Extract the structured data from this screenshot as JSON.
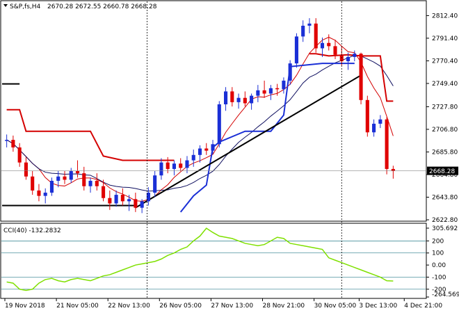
{
  "header": {
    "symbol": "S&P,fs,H4",
    "ohlc": "2670.28 2672.55 2660.78 2668.28"
  },
  "colors": {
    "up": "#1a2fd6",
    "down": "#e00000",
    "grid": "#000000",
    "cci": "#7fe000",
    "trend": "#000000"
  },
  "chart_data": [
    {
      "type": "candlestick",
      "title": "S&P,fs,H4",
      "ylim": [
        2622.8,
        2823.0
      ],
      "yticks": [
        "2812.40",
        "2791.40",
        "2770.40",
        "2749.40",
        "2727.80",
        "2706.80",
        "2685.80",
        "2664.80",
        "2643.80",
        "2622.80"
      ],
      "current_price": "2668.28",
      "x_labels": [
        "19 Nov 2018",
        "21 Nov 05:00",
        "22 Nov 13:00",
        "26 Nov 05:00",
        "27 Nov 13:00",
        "28 Nov 21:00",
        "30 Nov 05:00",
        "3 Dec 13:00",
        "4 Dec 21:00"
      ],
      "candles": [
        [
          2696,
          2702,
          2690,
          2697
        ],
        [
          2697,
          2701,
          2686,
          2690
        ],
        [
          2690,
          2694,
          2672,
          2676
        ],
        [
          2676,
          2681,
          2660,
          2663
        ],
        [
          2663,
          2668,
          2646,
          2650
        ],
        [
          2650,
          2656,
          2640,
          2645
        ],
        [
          2645,
          2652,
          2638,
          2648
        ],
        [
          2648,
          2662,
          2645,
          2659
        ],
        [
          2659,
          2668,
          2653,
          2663
        ],
        [
          2663,
          2668,
          2656,
          2660
        ],
        [
          2660,
          2671,
          2657,
          2668
        ],
        [
          2668,
          2678,
          2662,
          2666
        ],
        [
          2666,
          2672,
          2650,
          2654
        ],
        [
          2654,
          2662,
          2648,
          2659
        ],
        [
          2659,
          2666,
          2650,
          2654
        ],
        [
          2654,
          2660,
          2640,
          2643
        ],
        [
          2643,
          2650,
          2632,
          2638
        ],
        [
          2638,
          2650,
          2635,
          2646
        ],
        [
          2646,
          2652,
          2636,
          2640
        ],
        [
          2640,
          2646,
          2631,
          2642
        ],
        [
          2642,
          2648,
          2630,
          2634
        ],
        [
          2634,
          2642,
          2629,
          2640
        ],
        [
          2640,
          2653,
          2636,
          2648
        ],
        [
          2648,
          2668,
          2644,
          2664
        ],
        [
          2664,
          2680,
          2660,
          2676
        ],
        [
          2676,
          2681,
          2666,
          2670
        ],
        [
          2670,
          2678,
          2664,
          2675
        ],
        [
          2675,
          2680,
          2668,
          2671
        ],
        [
          2671,
          2682,
          2666,
          2678
        ],
        [
          2678,
          2688,
          2672,
          2683
        ],
        [
          2683,
          2692,
          2676,
          2689
        ],
        [
          2689,
          2694,
          2683,
          2687
        ],
        [
          2687,
          2697,
          2684,
          2693
        ],
        [
          2693,
          2733,
          2690,
          2730
        ],
        [
          2730,
          2746,
          2724,
          2742
        ],
        [
          2742,
          2746,
          2728,
          2732
        ],
        [
          2732,
          2740,
          2726,
          2736
        ],
        [
          2736,
          2742,
          2728,
          2731
        ],
        [
          2731,
          2740,
          2725,
          2738
        ],
        [
          2738,
          2748,
          2732,
          2743
        ],
        [
          2743,
          2752,
          2736,
          2740
        ],
        [
          2740,
          2748,
          2734,
          2745
        ],
        [
          2745,
          2749,
          2738,
          2744
        ],
        [
          2744,
          2755,
          2740,
          2752
        ],
        [
          2752,
          2771,
          2748,
          2768
        ],
        [
          2768,
          2796,
          2764,
          2793
        ],
        [
          2793,
          2808,
          2788,
          2803
        ],
        [
          2803,
          2810,
          2796,
          2805
        ],
        [
          2805,
          2810,
          2778,
          2782
        ],
        [
          2782,
          2792,
          2774,
          2787
        ],
        [
          2787,
          2795,
          2780,
          2784
        ],
        [
          2784,
          2790,
          2772,
          2776
        ],
        [
          2776,
          2784,
          2766,
          2770
        ],
        [
          2770,
          2778,
          2762,
          2774
        ],
        [
          2774,
          2780,
          2770,
          2777
        ],
        [
          2777,
          2778,
          2730,
          2734
        ],
        [
          2734,
          2738,
          2700,
          2704
        ],
        [
          2704,
          2716,
          2700,
          2712
        ],
        [
          2712,
          2720,
          2708,
          2716
        ],
        [
          2716,
          2718,
          2665,
          2670
        ],
        [
          2670,
          2673,
          2661,
          2668
        ]
      ],
      "annotations": [
        "horizontal resistance line",
        "ascending trendline",
        "moving averages (red, navy)",
        "support/resistance steps (red, blue)"
      ]
    },
    {
      "type": "line",
      "title": "CCI(40) -132.2832",
      "ylim": [
        -264.57,
        305.69
      ],
      "yticks": [
        "305.692",
        "200",
        "100",
        "0.00",
        "-100",
        "-200",
        "-264.5699"
      ],
      "levels": [
        200,
        100,
        -100,
        -200
      ],
      "values": [
        -140,
        -150,
        -200,
        -210,
        -200,
        -150,
        -120,
        -110,
        -130,
        -140,
        -120,
        -110,
        -120,
        -130,
        -110,
        -90,
        -80,
        -60,
        -40,
        -20,
        0,
        10,
        20,
        30,
        50,
        80,
        100,
        130,
        150,
        200,
        240,
        305,
        270,
        240,
        230,
        220,
        200,
        180,
        170,
        160,
        170,
        200,
        230,
        220,
        180,
        170,
        160,
        150,
        140,
        130,
        60,
        40,
        20,
        0,
        -20,
        -40,
        -60,
        -80,
        -100,
        -130,
        -132
      ]
    }
  ]
}
